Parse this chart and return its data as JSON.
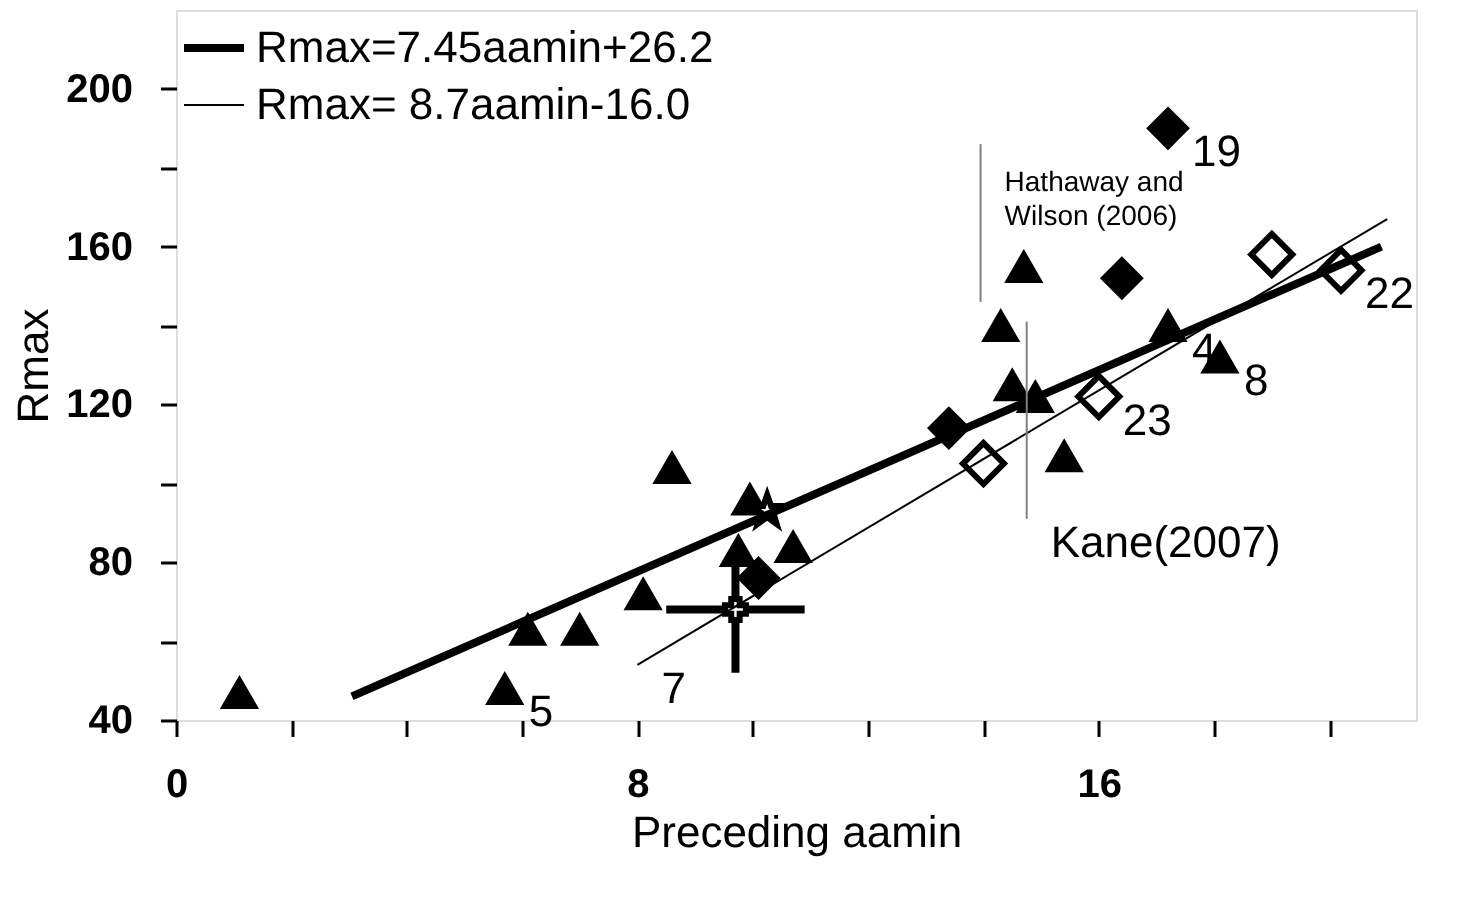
{
  "chart_data": {
    "type": "scatter",
    "xlabel": "Preceding aamin",
    "ylabel": "Rmax",
    "xlim": [
      0,
      21.5
    ],
    "ylim": [
      40,
      220
    ],
    "xticks": [
      0,
      {
        "value": 2,
        "label": null
      },
      {
        "value": 4,
        "label": null
      },
      {
        "value": 6,
        "label": null
      },
      8,
      {
        "value": 10,
        "label": null
      },
      {
        "value": 12,
        "label": null
      },
      {
        "value": 14,
        "label": null
      },
      16,
      {
        "value": 18,
        "label": null
      },
      {
        "value": 20,
        "label": null
      }
    ],
    "yticks": [
      40,
      {
        "value": 60,
        "label": null
      },
      80,
      {
        "value": 100,
        "label": null
      },
      120,
      {
        "value": 140,
        "label": null
      },
      160,
      {
        "value": 180,
        "label": null
      },
      200
    ],
    "legend": "top left",
    "grid": false,
    "series": [
      {
        "marker": "triangle",
        "color": "#000000",
        "x": [
          6.1,
          7.0,
          8.6,
          9.95,
          9.75,
          10.7,
          14.7,
          14.3,
          14.5,
          14.9,
          15.4
        ],
        "values": [
          63,
          63,
          104,
          96,
          83,
          84,
          155,
          140,
          125,
          122,
          107
        ]
      },
      {
        "marker": "triangle",
        "color": "#000000",
        "x": [
          1.1,
          5.7,
          8.1,
          17.2,
          18.1
        ],
        "values": [
          47,
          48,
          72,
          140,
          132
        ]
      },
      {
        "marker": "diamond",
        "color": "#000000",
        "x": [
          17.2,
          16.4,
          13.4,
          10.1
        ],
        "values": [
          190,
          152,
          114,
          76
        ]
      },
      {
        "marker": "diamond",
        "color": "#ffffff",
        "x": [
          16.0,
          14.0,
          19.0,
          20.2
        ],
        "values": [
          122,
          105,
          158,
          154
        ]
      },
      {
        "marker": "star",
        "color": "#ffffff",
        "x": [
          10.25
        ],
        "values": [
          93
        ]
      },
      {
        "marker": "cross",
        "color": "#ffffff",
        "x": [
          9.7
        ],
        "values": [
          68
        ],
        "errors": [
          [
            52,
            80
          ]
        ],
        "xerrors": [
          [
            8.5,
            10.9
          ]
        ]
      },
      {
        "type": "line",
        "name": "Rmax=7.45aamin+26.2",
        "color": "#000000",
        "x": [
          3.05,
          20.9
        ],
        "values": [
          46,
          160
        ]
      },
      {
        "type": "line",
        "name": "Rmax=  8.7aamin-16.0",
        "color": "#000000",
        "x": [
          8.0,
          21.0
        ],
        "values": [
          54,
          167
        ]
      },
      {
        "type": "line",
        "color": "#808080",
        "x": [
          13.95,
          13.95
        ],
        "values": [
          186,
          146
        ]
      },
      {
        "type": "line",
        "color": "#808080",
        "x": [
          14.75,
          14.75
        ],
        "values": [
          141,
          91
        ]
      }
    ],
    "annotations": [
      {
        "text": "19",
        "x": 17.2,
        "y": 190
      },
      {
        "text": "22",
        "x": 20.2,
        "y": 154
      },
      {
        "text": "4",
        "x": 17.2,
        "y": 140
      },
      {
        "text": "8",
        "x": 18.1,
        "y": 132
      },
      {
        "text": "23",
        "x": 16.0,
        "y": 122
      },
      {
        "text": "7",
        "x": 8.0,
        "y": 54
      },
      {
        "text": "5",
        "x": 5.7,
        "y": 48
      },
      {
        "text": "Hathaway and\nWilson (2006)",
        "x": 13.95,
        "y": 170
      },
      {
        "text": "Kane(2007)",
        "x": 14.75,
        "y": 91
      }
    ]
  }
}
